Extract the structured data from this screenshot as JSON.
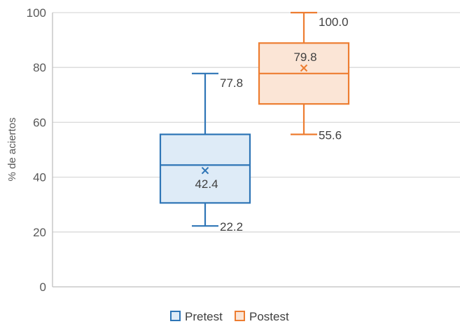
{
  "chart_data": {
    "type": "boxplot",
    "ylabel": "% de aciertos",
    "ylim": [
      0,
      100
    ],
    "yticks": [
      0,
      20,
      40,
      60,
      80,
      100
    ],
    "grid": true,
    "legend_position": "bottom-center",
    "series": [
      {
        "name": "Pretest",
        "color": "#2E75B6",
        "fill": "#DEEBF7",
        "min": 22.2,
        "q1": 30.6,
        "median": 44.4,
        "q3": 55.6,
        "max": 77.8,
        "mean": 42.4,
        "labels": {
          "max": "77.8",
          "mean": "42.4",
          "min": "22.2"
        }
      },
      {
        "name": "Postest",
        "color": "#ED7D31",
        "fill": "#FBE5D6",
        "min": 55.6,
        "q1": 66.7,
        "median": 77.8,
        "q3": 88.9,
        "max": 100.0,
        "mean": 79.8,
        "labels": {
          "max": "100.0",
          "mean": "79.8",
          "min": "55.6"
        }
      }
    ]
  }
}
